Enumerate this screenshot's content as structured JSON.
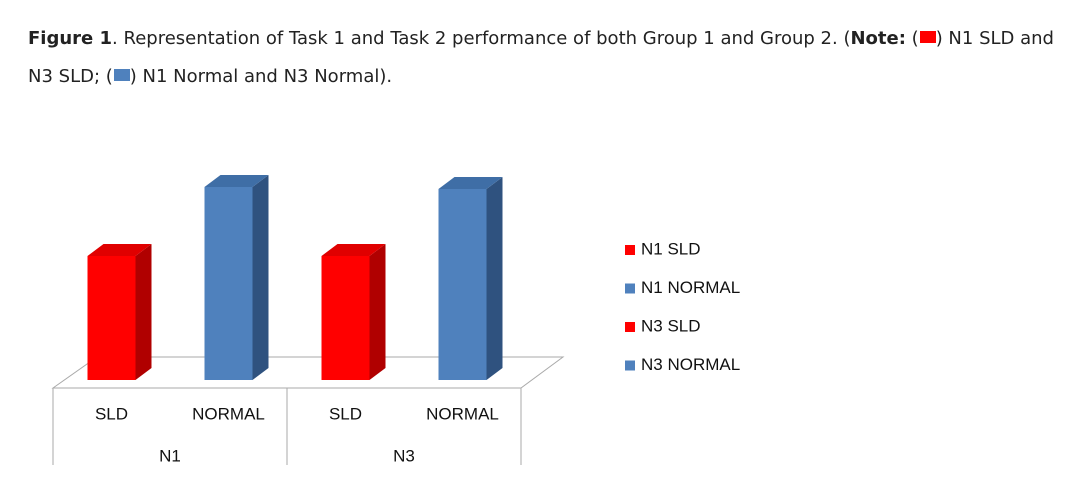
{
  "caption": [
    {
      "text": "Figure 1",
      "bold": true
    },
    {
      "text": ". Representation of Task 1 and Task 2 performance of both Group 1 and Group 2. (",
      "bold": false
    },
    {
      "text": "Note:",
      "bold": true
    },
    {
      "text": " (",
      "bold": false,
      "swatch": "red"
    },
    {
      "text": ") N1 SLD and N3 SLD; (",
      "bold": false,
      "swatch": "blue"
    },
    {
      "text": ") N1 Normal and N3 Normal).",
      "bold": false
    }
  ],
  "chart_data": {
    "type": "bar3d",
    "categories": [
      "SLD",
      "NORMAL",
      "SLD",
      "NORMAL"
    ],
    "groups": [
      "N1",
      "N3"
    ],
    "series": [
      {
        "name": "N1 SLD",
        "color": "#ff0000",
        "values": [
          124,
          null,
          null,
          null
        ]
      },
      {
        "name": "N1 NORMAL",
        "color": "#4f81bd",
        "values": [
          null,
          193,
          null,
          null
        ]
      },
      {
        "name": "N3 SLD",
        "color": "#ff0000",
        "values": [
          null,
          null,
          124,
          null
        ]
      },
      {
        "name": "N3 NORMAL",
        "color": "#4f81bd",
        "values": [
          null,
          null,
          null,
          191
        ]
      }
    ],
    "ylim": [
      0,
      200
    ],
    "legend": "right"
  }
}
